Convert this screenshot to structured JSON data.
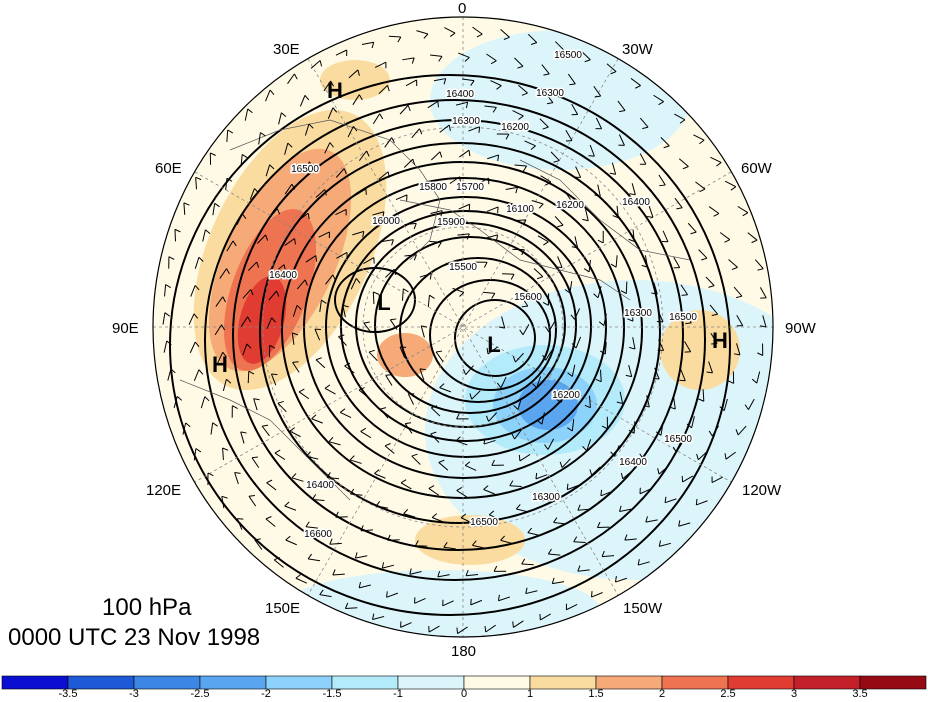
{
  "titles": {
    "level": "100 hPa",
    "time": "0000 UTC 23 Nov 1998"
  },
  "longitude_labels": [
    "0",
    "30W",
    "60W",
    "90W",
    "120W",
    "150W",
    "180",
    "150E",
    "120E",
    "90E",
    "60E",
    "30E"
  ],
  "pressure_centers": [
    {
      "id": "h-30e",
      "label": "H"
    },
    {
      "id": "h-90e",
      "label": "H"
    },
    {
      "id": "h-90w",
      "label": "H"
    },
    {
      "id": "l-west",
      "label": "L"
    },
    {
      "id": "l-center",
      "label": "L"
    }
  ],
  "contour_labels": [
    "16500",
    "16400",
    "16300",
    "16300",
    "16200",
    "16100",
    "16000",
    "15900",
    "15800",
    "15700",
    "15600",
    "15500",
    "16400",
    "16500",
    "16600",
    "16500",
    "16300",
    "16400",
    "16200",
    "16300",
    "16400",
    "16500",
    "16500",
    "16400",
    "16300",
    "16200"
  ],
  "colorbar": {
    "ticks": [
      "-3.5",
      "-3",
      "-2.5",
      "-2",
      "-1.5",
      "-1",
      "0",
      "1",
      "1.5",
      "2",
      "2.5",
      "3",
      "3.5"
    ],
    "colors": [
      "#0a0fd2",
      "#1e5ad7",
      "#3c87e6",
      "#5aa5f0",
      "#8cd2fa",
      "#b4ebfa",
      "#dcf5fa",
      "#fffae6",
      "#fadca0",
      "#f5aa78",
      "#ee7350",
      "#e13c32",
      "#c3202a",
      "#960a14"
    ]
  }
}
